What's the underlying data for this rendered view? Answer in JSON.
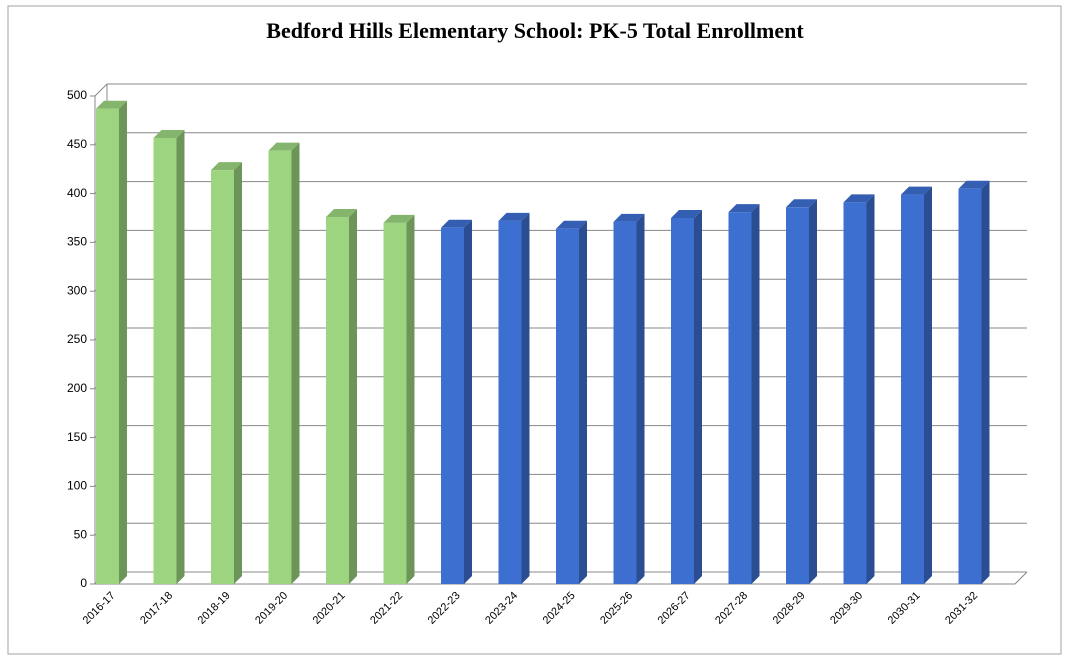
{
  "chart_data": {
    "type": "bar3d",
    "title": "Bedford Hills Elementary School: PK-5 Total Enrollment",
    "categories": [
      "2016-17",
      "2017-18",
      "2018-19",
      "2019-20",
      "2020-21",
      "2021-22",
      "2022-23",
      "2023-24",
      "2024-25",
      "2025-26",
      "2026-27",
      "2027-28",
      "2028-29",
      "2029-30",
      "2030-31",
      "2031-32"
    ],
    "values": [
      487,
      457,
      424,
      444,
      376,
      370,
      365,
      372,
      364,
      371,
      375,
      381,
      386,
      391,
      399,
      405
    ],
    "colors": [
      "#9cd47f",
      "#9cd47f",
      "#9cd47f",
      "#9cd47f",
      "#9cd47f",
      "#9cd47f",
      "#3d6fd0",
      "#3d6fd0",
      "#3d6fd0",
      "#3d6fd0",
      "#3d6fd0",
      "#3d6fd0",
      "#3d6fd0",
      "#3d6fd0",
      "#3d6fd0",
      "#3d6fd0"
    ],
    "ylim": [
      0,
      500
    ],
    "yticks": [
      0,
      50,
      100,
      150,
      200,
      250,
      300,
      350,
      400,
      450,
      500
    ],
    "grid": true
  }
}
